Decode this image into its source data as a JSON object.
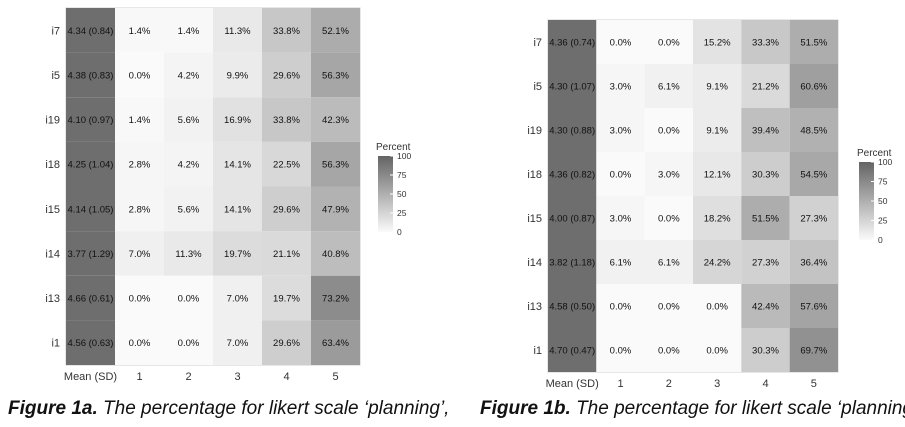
{
  "chart_data": [
    {
      "type": "heatmap",
      "figure_label": "Figure 1a.",
      "caption": "The percentage for likert scale ‘planning’,",
      "rows": [
        "i7",
        "i5",
        "i19",
        "i18",
        "i15",
        "i14",
        "i13",
        "i1"
      ],
      "columns": [
        "Mean (SD)",
        "1",
        "2",
        "3",
        "4",
        "5"
      ],
      "mean_sd": [
        "4.34 (0.84)",
        "4.38 (0.83)",
        "4.10 (0.97)",
        "4.25 (1.04)",
        "4.14 (1.05)",
        "3.77 (1.29)",
        "4.66 (0.61)",
        "4.56 (0.63)"
      ],
      "values": [
        [
          1.4,
          1.4,
          11.3,
          33.8,
          52.1
        ],
        [
          0.0,
          4.2,
          9.9,
          29.6,
          56.3
        ],
        [
          1.4,
          5.6,
          16.9,
          33.8,
          42.3
        ],
        [
          2.8,
          4.2,
          14.1,
          22.5,
          56.3
        ],
        [
          2.8,
          5.6,
          14.1,
          29.6,
          47.9
        ],
        [
          7.0,
          11.3,
          19.7,
          21.1,
          40.8
        ],
        [
          0.0,
          0.0,
          7.0,
          19.7,
          73.2
        ],
        [
          0.0,
          0.0,
          7.0,
          29.6,
          63.4
        ]
      ],
      "legend": {
        "title": "Percent",
        "ticks": [
          "100",
          "75",
          "50",
          "25",
          "0"
        ],
        "range": [
          0,
          100
        ]
      }
    },
    {
      "type": "heatmap",
      "figure_label": "Figure 1b.",
      "caption": "The percentage for likert scale ‘planning’,",
      "rows": [
        "i7",
        "i5",
        "i19",
        "i18",
        "i15",
        "i14",
        "i13",
        "i1"
      ],
      "columns": [
        "Mean (SD)",
        "1",
        "2",
        "3",
        "4",
        "5"
      ],
      "mean_sd": [
        "4.36 (0.74)",
        "4.30 (1.07)",
        "4.30 (0.88)",
        "4.36 (0.82)",
        "4.00 (0.87)",
        "3.82 (1.18)",
        "4.58 (0.50)",
        "4.70 (0.47)"
      ],
      "values": [
        [
          0.0,
          0.0,
          15.2,
          33.3,
          51.5
        ],
        [
          3.0,
          6.1,
          9.1,
          21.2,
          60.6
        ],
        [
          3.0,
          0.0,
          9.1,
          39.4,
          48.5
        ],
        [
          0.0,
          3.0,
          12.1,
          30.3,
          54.5
        ],
        [
          3.0,
          0.0,
          18.2,
          51.5,
          27.3
        ],
        [
          6.1,
          6.1,
          24.2,
          27.3,
          36.4
        ],
        [
          0.0,
          0.0,
          0.0,
          42.4,
          57.6
        ],
        [
          0.0,
          0.0,
          0.0,
          30.3,
          69.7
        ]
      ],
      "legend": {
        "title": "Percent",
        "ticks": [
          "100",
          "75",
          "50",
          "25",
          "0"
        ],
        "range": [
          0,
          100
        ]
      }
    }
  ]
}
